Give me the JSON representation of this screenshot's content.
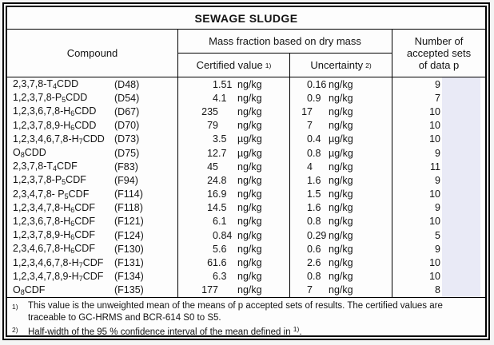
{
  "title": "SEWAGE SLUDGE",
  "header": {
    "compound": "Compound",
    "mass_fraction": "Mass fraction based on dry mass",
    "certified_label": "Certified value",
    "certified_sup": "1)",
    "uncertainty_label": "Uncertainty",
    "uncertainty_sup": "2)",
    "accepted_lines": [
      "Number of",
      "accepted sets",
      "of data p"
    ]
  },
  "rows": [
    {
      "name": "2,3,7,8-T|4|CDD",
      "code": "(D48)",
      "value": "1.51",
      "value_unit": "ng/kg",
      "uncertainty": "0.16",
      "uncertainty_unit": "ng/kg",
      "n": "9"
    },
    {
      "name": "1,2,3,7,8-P|5|CDD",
      "code": "(D54)",
      "value": "4.1",
      "value_unit": "ng/kg",
      "uncertainty": "0.9",
      "uncertainty_unit": "ng/kg",
      "n": "7"
    },
    {
      "name": "1,2,3,6,7,8-H|6|CDD",
      "code": "(D67)",
      "value": "235",
      "value_unit": "ng/kg",
      "uncertainty": "17",
      "uncertainty_unit": "ng/kg",
      "n": "10"
    },
    {
      "name": "1,2,3,7,8,9-H|6|CDD",
      "code": "(D70)",
      "value": "79",
      "value_unit": "ng/kg",
      "uncertainty": "7",
      "uncertainty_unit": "ng/kg",
      "n": "10"
    },
    {
      "name": "1,2,3,4,6,7,8-H|7|CDD",
      "code": "(D73)",
      "value": "3.5",
      "value_unit": "µg/kg",
      "uncertainty": "0.4",
      "uncertainty_unit": "µg/kg",
      "n": "10"
    },
    {
      "name": "O|8|CDD",
      "code": "(D75)",
      "value": "12.7",
      "value_unit": "µg/kg",
      "uncertainty": "0.8",
      "uncertainty_unit": "µg/kg",
      "n": "9"
    },
    {
      "name": "2,3,7,8-T|4|CDF",
      "code": "(F83)",
      "value": "45",
      "value_unit": "ng/kg",
      "uncertainty": "4",
      "uncertainty_unit": "ng/kg",
      "n": "11"
    },
    {
      "name": "1,2,3,7,8-P|5|CDF",
      "code": "(F94)",
      "value": "24.8",
      "value_unit": "ng/kg",
      "uncertainty": "1.6",
      "uncertainty_unit": "ng/kg",
      "n": "9"
    },
    {
      "name": "2,3,4,7,8- P|5|CDF",
      "code": "(F114)",
      "value": "16.9",
      "value_unit": "ng/kg",
      "uncertainty": "1.5",
      "uncertainty_unit": "ng/kg",
      "n": "10"
    },
    {
      "name": "1,2,3,4,7,8-H|6|CDF",
      "code": "(F118)",
      "value": "14.5",
      "value_unit": "ng/kg",
      "uncertainty": "1.6",
      "uncertainty_unit": "ng/kg",
      "n": "9"
    },
    {
      "name": "1,2,3,6,7,8-H|6|CDF",
      "code": "(F121)",
      "value": "6.1",
      "value_unit": "ng/kg",
      "uncertainty": "0.8",
      "uncertainty_unit": "ng/kg",
      "n": "10"
    },
    {
      "name": "1,2,3,7,8,9-H|6|CDF",
      "code": "(F124)",
      "value": "0.84",
      "value_unit": "ng/kg",
      "uncertainty": "0.29",
      "uncertainty_unit": "ng/kg",
      "n": "5"
    },
    {
      "name": "2,3,4,6,7,8-H|6|CDF",
      "code": "(F130)",
      "value": "5.6",
      "value_unit": "ng/kg",
      "uncertainty": "0.6",
      "uncertainty_unit": "ng/kg",
      "n": "9"
    },
    {
      "name": "1,2,3,4,6,7,8-H|7|CDF",
      "code": "(F131)",
      "value": "61.6",
      "value_unit": "ng/kg",
      "uncertainty": "2.6",
      "uncertainty_unit": "ng/kg",
      "n": "10"
    },
    {
      "name": "1,2,3,4,7,8,9-H|7|CDF",
      "code": "(F134)",
      "value": "6.3",
      "value_unit": "ng/kg",
      "uncertainty": "0.8",
      "uncertainty_unit": "ng/kg",
      "n": "10"
    },
    {
      "name": "O|8|CDF",
      "code": "(F135)",
      "value": "177",
      "value_unit": "ng/kg",
      "uncertainty": "7",
      "uncertainty_unit": "ng/kg",
      "n": "8"
    }
  ],
  "footnotes": {
    "fn1": {
      "sup": "1)",
      "text": "This value is the unweighted mean of the means of p accepted sets of results. The certified values are traceable to GC-HRMS and BCR-614 S0 to S5."
    },
    "fn2": {
      "sup": "2)",
      "text": "Half-width of the 95 % confidence interval of the mean defined in ",
      "ref_sup": "1)",
      "tail": "."
    }
  },
  "colors": {
    "highlight": "#e9eaf6",
    "border": "#000000",
    "table_background": "#fdfdfd",
    "page_background": "#f4f4f4",
    "text": "#141414"
  }
}
